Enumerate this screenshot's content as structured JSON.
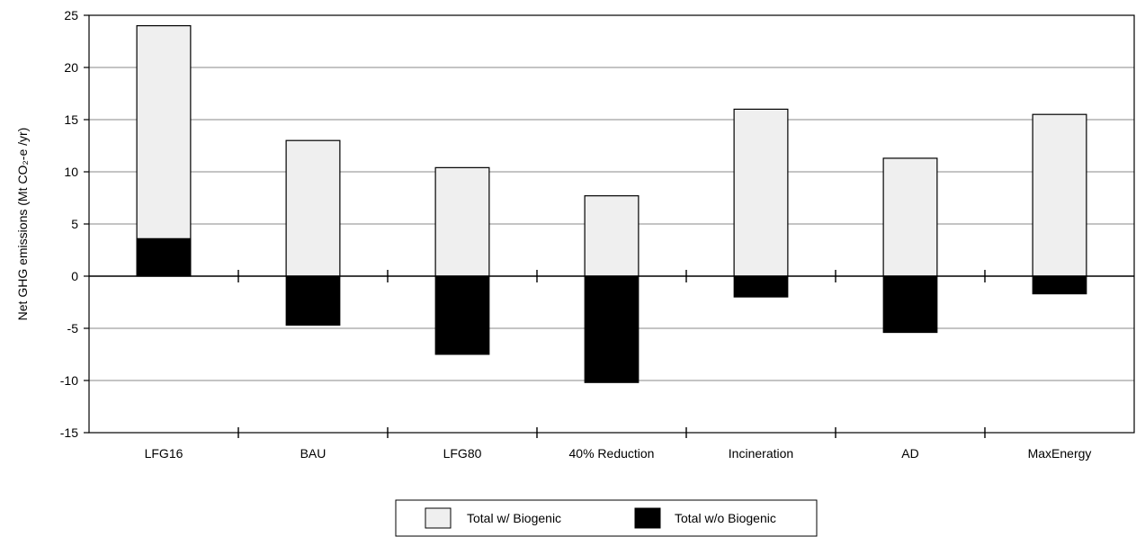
{
  "chart_data": {
    "type": "bar",
    "title": "",
    "xlabel": "",
    "ylabel": "Net GHG emissions (Mt CO₂-e /yr)",
    "ylim": [
      -15,
      25
    ],
    "yticks": [
      25,
      20,
      15,
      10,
      5,
      0,
      -5,
      -10,
      -15
    ],
    "grid": true,
    "legend_position": "bottom",
    "bar_mode": "overlay",
    "categories": [
      "LFG16",
      "BAU",
      "LFG80",
      "40% Reduction",
      "Incineration",
      "AD",
      "MaxEnergy"
    ],
    "series": [
      {
        "name": "Total w/ Biogenic",
        "values": [
          24,
          13,
          10.4,
          7.7,
          16,
          11.3,
          15.5
        ],
        "color": "#efefef"
      },
      {
        "name": "Total w/o Biogenic",
        "values": [
          3.6,
          -4.7,
          -7.5,
          -10.2,
          -2.0,
          -5.4,
          -1.7
        ],
        "color": "#000000"
      }
    ]
  }
}
